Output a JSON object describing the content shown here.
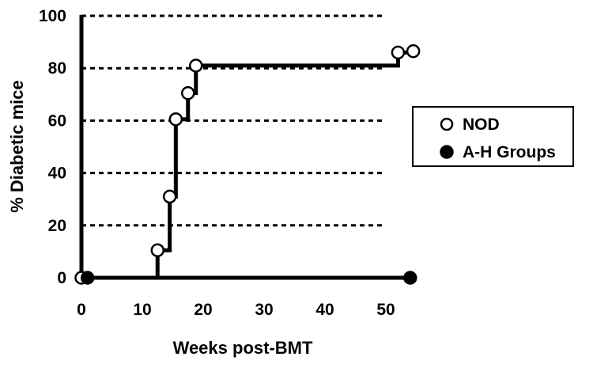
{
  "chart_data": {
    "type": "line",
    "subtype": "kaplan-meier step",
    "title": "",
    "xlabel": "Weeks post-BMT",
    "ylabel": "% Diabetic mice",
    "xlim": [
      0,
      55
    ],
    "ylim": [
      0,
      100
    ],
    "xticks": [
      "0",
      "10",
      "20",
      "30",
      "40",
      "50"
    ],
    "yticks": [
      "0",
      "20",
      "40",
      "60",
      "80",
      "100"
    ],
    "grid": "horizontal dashed",
    "legend_position": "right",
    "series": [
      {
        "name": "NOD",
        "marker": "open circle",
        "x": [
          0,
          12.5,
          14.5,
          15.5,
          17.5,
          18.8,
          52,
          54.5
        ],
        "y": [
          0,
          10.5,
          31,
          60.5,
          70.5,
          81,
          86,
          86.5
        ]
      },
      {
        "name": "A-H Groups",
        "marker": "filled circle",
        "x": [
          1,
          54
        ],
        "y": [
          0,
          0
        ]
      }
    ]
  }
}
